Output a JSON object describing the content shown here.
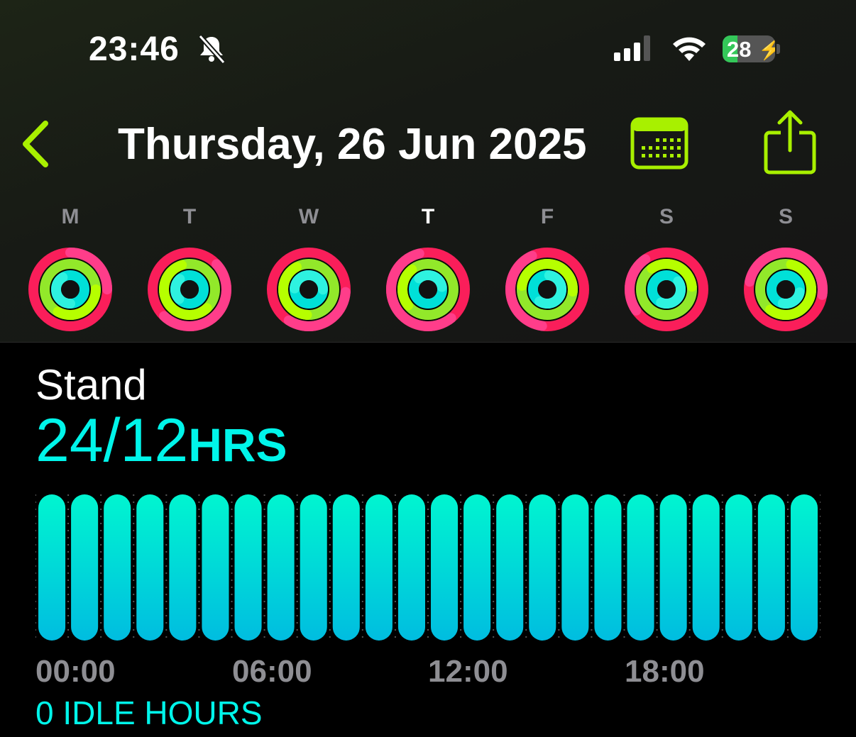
{
  "status_bar": {
    "time": "23:46",
    "silent_icon": "bell-slash-icon",
    "signal_bars": 4,
    "signal_active": 3,
    "wifi_icon": "wifi-icon",
    "battery_percent": "28",
    "charging": true
  },
  "header": {
    "back_icon": "chevron-left-icon",
    "title": "Thursday, 26 Jun 2025",
    "calendar_icon": "calendar-icon",
    "share_icon": "share-icon",
    "accent": "#a8f000"
  },
  "week": [
    {
      "label": "M",
      "selected": false
    },
    {
      "label": "T",
      "selected": false
    },
    {
      "label": "W",
      "selected": false
    },
    {
      "label": "T",
      "selected": true
    },
    {
      "label": "F",
      "selected": false
    },
    {
      "label": "S",
      "selected": false
    },
    {
      "label": "S",
      "selected": false
    }
  ],
  "ring_colors": {
    "move": "#fa1e5a",
    "exercise": "#92e82a",
    "stand": "#00e0d8"
  },
  "stand": {
    "label": "Stand",
    "value": "24/12",
    "unit": "HRS",
    "idle": "0 IDLE HOURS",
    "color": "#00f5ea"
  },
  "chart_data": {
    "type": "bar",
    "categories": [
      "00",
      "01",
      "02",
      "03",
      "04",
      "05",
      "06",
      "07",
      "08",
      "09",
      "10",
      "11",
      "12",
      "13",
      "14",
      "15",
      "16",
      "17",
      "18",
      "19",
      "20",
      "21",
      "22",
      "23"
    ],
    "values": [
      1,
      1,
      1,
      1,
      1,
      1,
      1,
      1,
      1,
      1,
      1,
      1,
      1,
      1,
      1,
      1,
      1,
      1,
      1,
      1,
      1,
      1,
      1,
      1
    ],
    "ylim": [
      0,
      1
    ],
    "xticks": [
      "00:00",
      "06:00",
      "12:00",
      "18:00"
    ]
  }
}
